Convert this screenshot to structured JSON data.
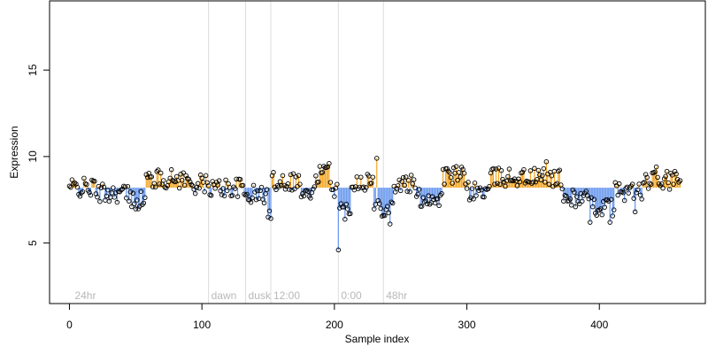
{
  "chart_data": {
    "type": "scatter",
    "xlabel": "Sample index",
    "ylabel": "Expression",
    "xlim": [
      -15,
      480
    ],
    "ylim": [
      1.5,
      19
    ],
    "baseline": 8.2,
    "x_ticks": [
      0,
      100,
      200,
      300,
      400
    ],
    "y_ticks": [
      5,
      10,
      15
    ],
    "grid": false,
    "colors": {
      "above": "#f5a623",
      "below": "#6495ed",
      "points": "#000000",
      "annotation": "#dcdcdc"
    },
    "annotations": [
      {
        "x": 2,
        "label": "24hr",
        "line": false
      },
      {
        "x": 105,
        "label": "dawn",
        "line": true
      },
      {
        "x": 133,
        "label": "dusk",
        "line": true
      },
      {
        "x": 152,
        "label": "12:00",
        "line": true
      },
      {
        "x": 203,
        "label": "0:00",
        "line": true
      },
      {
        "x": 237,
        "label": "48hr",
        "line": true
      }
    ],
    "n_points": 462,
    "segment_values": [
      {
        "from": 0,
        "to": 20,
        "value": 8.2
      },
      {
        "from": 20,
        "to": 45,
        "value": 7.9
      },
      {
        "from": 45,
        "to": 58,
        "value": 7.5
      },
      {
        "from": 58,
        "to": 90,
        "value": 8.7
      },
      {
        "from": 90,
        "to": 105,
        "value": 8.4
      },
      {
        "from": 105,
        "to": 132,
        "value": 8.2
      },
      {
        "from": 132,
        "to": 150,
        "value": 7.8
      },
      {
        "from": 150,
        "to": 153,
        "value": 6.7
      },
      {
        "from": 153,
        "to": 175,
        "value": 8.6
      },
      {
        "from": 175,
        "to": 186,
        "value": 7.8
      },
      {
        "from": 186,
        "to": 198,
        "value": 9.0
      },
      {
        "from": 198,
        "to": 203,
        "value": 8.2
      },
      {
        "from": 203,
        "to": 213,
        "value": 6.9
      },
      {
        "from": 213,
        "to": 230,
        "value": 8.6
      },
      {
        "from": 230,
        "to": 245,
        "value": 7.1
      },
      {
        "from": 245,
        "to": 262,
        "value": 8.4
      },
      {
        "from": 262,
        "to": 282,
        "value": 7.6
      },
      {
        "from": 282,
        "to": 300,
        "value": 8.9
      },
      {
        "from": 300,
        "to": 318,
        "value": 8.0
      },
      {
        "from": 318,
        "to": 372,
        "value": 8.8
      },
      {
        "from": 372,
        "to": 392,
        "value": 7.6
      },
      {
        "from": 392,
        "to": 412,
        "value": 7.1
      },
      {
        "from": 412,
        "to": 435,
        "value": 8.0
      },
      {
        "from": 435,
        "to": 462,
        "value": 8.6
      }
    ],
    "outliers": [
      {
        "x": 203,
        "y": 4.6
      },
      {
        "x": 232,
        "y": 9.9
      },
      {
        "x": 150,
        "y": 6.5
      },
      {
        "x": 196,
        "y": 9.6
      },
      {
        "x": 212,
        "y": 6.7
      },
      {
        "x": 242,
        "y": 6.1
      },
      {
        "x": 360,
        "y": 9.7
      },
      {
        "x": 393,
        "y": 6.2
      },
      {
        "x": 408,
        "y": 6.2
      },
      {
        "x": 427,
        "y": 6.8
      },
      {
        "x": 443,
        "y": 9.4
      }
    ]
  }
}
